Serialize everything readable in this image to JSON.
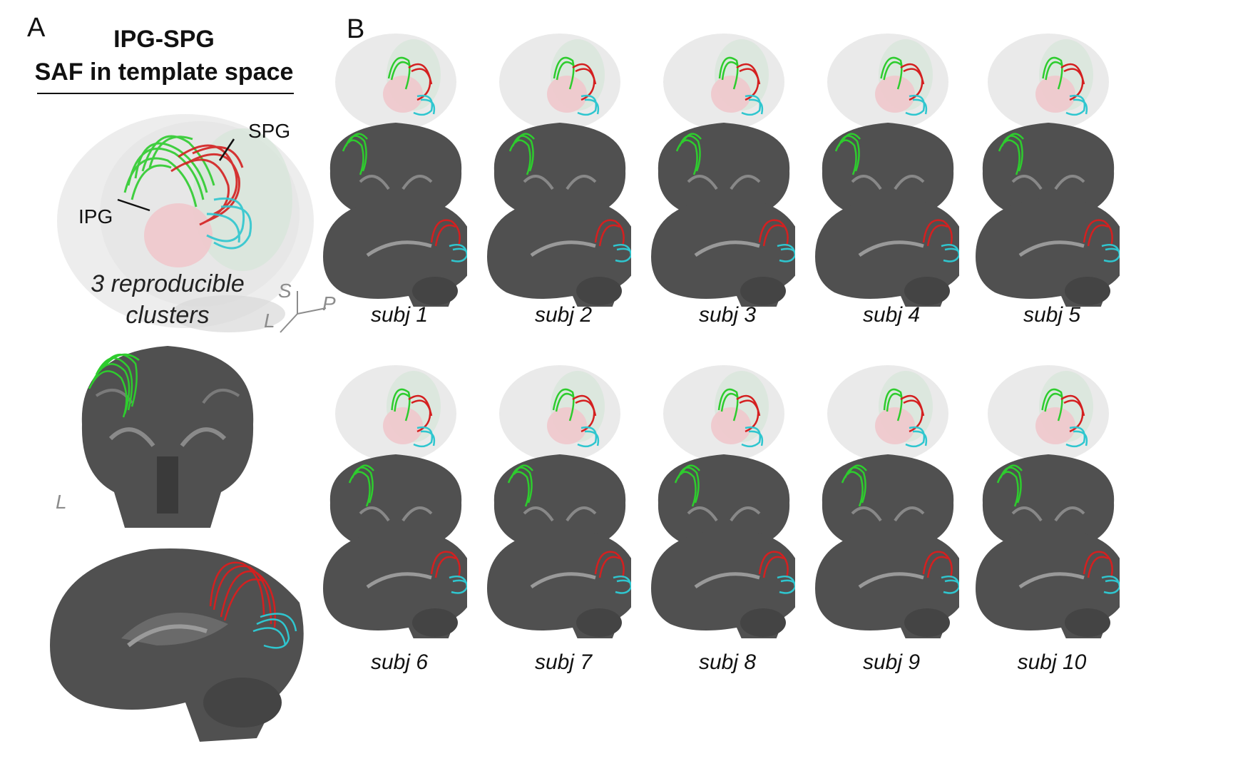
{
  "panels": {
    "a": "A",
    "b": "B"
  },
  "panel_a": {
    "title_line1": "IPG-SPG",
    "title_line2": "SAF in template space",
    "label_spg": "SPG",
    "label_ipg": "IPG",
    "note_line1": "3 reproducible",
    "note_line2": "clusters",
    "axis_s": "S",
    "axis_p": "P",
    "axis_l": "L",
    "coronal_l": "L"
  },
  "subjects": [
    "subj 1",
    "subj 2",
    "subj 3",
    "subj 4",
    "subj 5",
    "subj 6",
    "subj 7",
    "subj 8",
    "subj 9",
    "subj 10"
  ],
  "colors": {
    "cluster_green": "#2ecc2e",
    "cluster_red": "#d42020",
    "cluster_cyan": "#2fc6cf",
    "glass_brain": "#e6e6e6",
    "mri_gray": "#505050",
    "ipg_pink": "#f0c8cc"
  }
}
